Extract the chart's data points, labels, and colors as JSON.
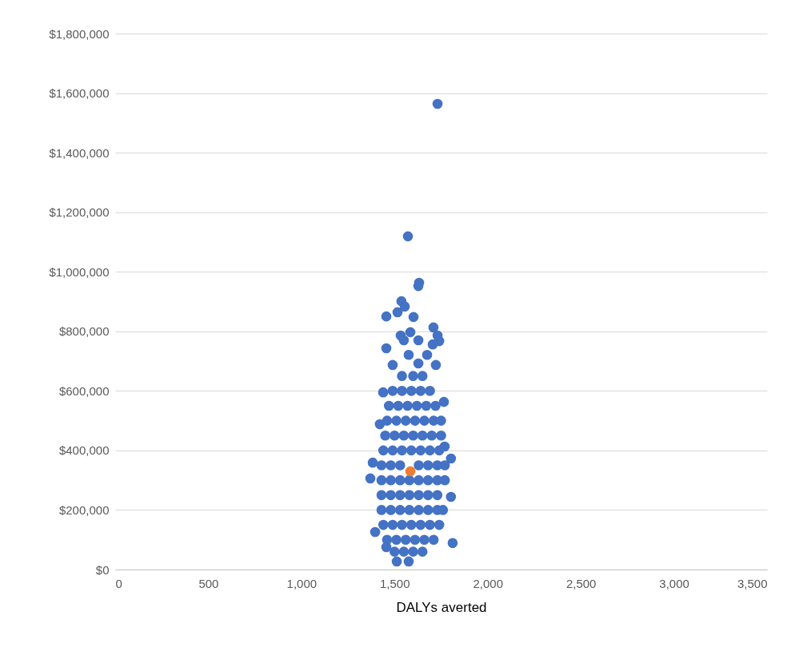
{
  "chart_data": {
    "type": "scatter",
    "xlabel": "DALYs averted",
    "xlim": [
      0,
      3500
    ],
    "ylim": [
      0,
      1800000
    ],
    "xticks": [
      0,
      {
        "value": 500,
        "label": "500"
      },
      {
        "value": 1000,
        "label": "1,000"
      },
      {
        "value": 1500,
        "label": "1,500"
      },
      {
        "value": 2000,
        "label": "2,000"
      },
      {
        "value": 2500,
        "label": "2,500"
      },
      {
        "value": 3000,
        "label": "3,000"
      },
      {
        "value": 3500,
        "label": "3,500"
      }
    ],
    "yticks": [
      {
        "value": 0,
        "label": "$0"
      },
      {
        "value": 200000,
        "label": "$200,000"
      },
      {
        "value": 400000,
        "label": "$400,000"
      },
      {
        "value": 600000,
        "label": "$600,000"
      },
      {
        "value": 800000,
        "label": "$800,000"
      },
      {
        "value": 1000000,
        "label": "$1,000,000"
      },
      {
        "value": 1200000,
        "label": "$1,200,000"
      },
      {
        "value": 1400000,
        "label": "$1,400,000"
      },
      {
        "value": 1600000,
        "label": "$1,600,000"
      },
      {
        "value": 1800000,
        "label": "$1,800,000"
      }
    ],
    "grid": "y",
    "marker": "circle",
    "legend": false,
    "series": [
      {
        "color": "#4472c4",
        "x": [
          1731,
          1572,
          1632,
          1628,
          1537,
          1555,
          1456,
          1602,
          1516,
          1585,
          1533,
          1709,
          1731,
          1740,
          1705,
          1628,
          1550,
          1456,
          1675,
          1576,
          1628,
          1722,
          1490,
          1765,
          1439,
          1421,
          1769,
          1383,
          1370,
          1803,
          1803,
          1812,
          1396,
          1512,
          1576,
          1456,
          1540,
          1600,
          1650,
          1490,
          1540,
          1590,
          1640,
          1690,
          1470,
          1520,
          1570,
          1620,
          1670,
          1720,
          1460,
          1510,
          1560,
          1610,
          1660,
          1710,
          1750,
          1450,
          1500,
          1550,
          1600,
          1650,
          1700,
          1750,
          1440,
          1490,
          1540,
          1590,
          1640,
          1690,
          1740,
          1430,
          1480,
          1530,
          1630,
          1680,
          1730,
          1770,
          1430,
          1480,
          1530,
          1580,
          1630,
          1680,
          1730,
          1770,
          1430,
          1480,
          1530,
          1580,
          1630,
          1680,
          1730,
          1430,
          1480,
          1530,
          1580,
          1630,
          1680,
          1730,
          1760,
          1440,
          1490,
          1540,
          1590,
          1640,
          1690,
          1740,
          1460,
          1510,
          1560,
          1610,
          1660,
          1710,
          1500,
          1550,
          1600,
          1650
        ],
        "values": [
          1564000,
          1119000,
          963000,
          952000,
          901000,
          883000,
          850000,
          848000,
          864000,
          797000,
          786000,
          813000,
          786000,
          767000,
          756000,
          770000,
          770000,
          743000,
          721000,
          721000,
          692000,
          687000,
          687000,
          563000,
          595000,
          488000,
          413000,
          359000,
          306000,
          373000,
          244000,
          89000,
          126000,
          27000,
          27000,
          75000,
          650000,
          650000,
          650000,
          600000,
          600000,
          600000,
          600000,
          600000,
          550000,
          550000,
          550000,
          550000,
          550000,
          550000,
          500000,
          500000,
          500000,
          500000,
          500000,
          500000,
          500000,
          450000,
          450000,
          450000,
          450000,
          450000,
          450000,
          450000,
          400000,
          400000,
          400000,
          400000,
          400000,
          400000,
          400000,
          350000,
          350000,
          350000,
          350000,
          350000,
          350000,
          350000,
          300000,
          300000,
          300000,
          300000,
          300000,
          300000,
          300000,
          300000,
          250000,
          250000,
          250000,
          250000,
          250000,
          250000,
          250000,
          200000,
          200000,
          200000,
          200000,
          200000,
          200000,
          200000,
          200000,
          150000,
          150000,
          150000,
          150000,
          150000,
          150000,
          150000,
          100000,
          100000,
          100000,
          100000,
          100000,
          100000,
          60000,
          60000,
          60000,
          60000
        ]
      },
      {
        "color": "#ed7d31",
        "x": [
          1585
        ],
        "values": [
          330000
        ]
      }
    ]
  }
}
